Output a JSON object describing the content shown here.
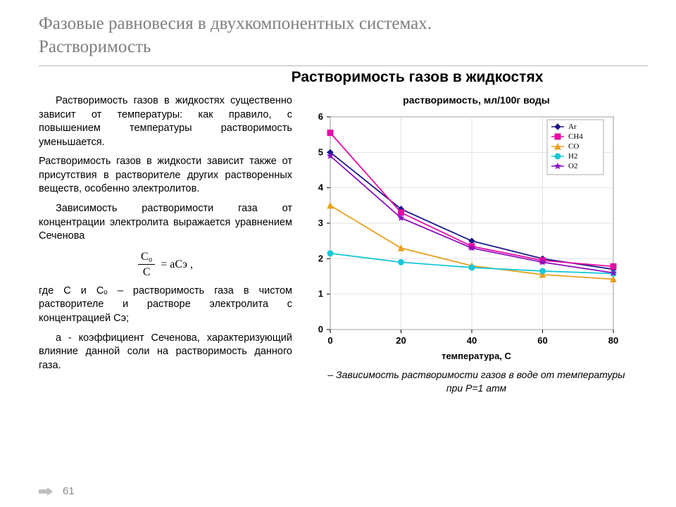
{
  "title": "Фазовые равновесия в двухкомпонентных системах.\nРастворимость",
  "subtitle": "Растворимость газов в жидкостях",
  "page_number": "61",
  "text": {
    "p1": "Растворимость газов в жидкостях существенно зависит от температуры: как правило, с повышением температуры растворимость уменьшается.",
    "p2": "Растворимость газов в жидкости зависит также от присутствия в растворителе других растворенных веществ, особенно электролитов.",
    "p3": "Зависимость растворимости газа от концентрации электролита выражается уравнением Сеченова",
    "formula": {
      "num": "C₀",
      "den": "C",
      "rhs": "= aCэ ,"
    },
    "p4": "где C и Cₒ – растворимость газа в чистом растворителе и растворе электролита с концентрацией Cэ;",
    "p5": "a - коэффициент Сеченова, характеризующий влияние данной соли на растворимость данного газа."
  },
  "chart": {
    "type": "line",
    "title": "растворимость, мл/100г воды",
    "xlabel": "температура, С",
    "xlim": [
      0,
      80
    ],
    "ylim": [
      0,
      6
    ],
    "xticks": [
      0,
      20,
      40,
      60,
      80
    ],
    "yticks": [
      0,
      1,
      2,
      3,
      4,
      5,
      6
    ],
    "grid_color": "#d8d8d8",
    "axis_color": "#000000",
    "background": "#ffffff",
    "tick_font_size": 13,
    "series": [
      {
        "name": "Ar",
        "color": "#1a1a8a",
        "marker": "diamond",
        "x": [
          0,
          20,
          40,
          60,
          80
        ],
        "y": [
          5.0,
          3.4,
          2.5,
          2.0,
          1.7
        ]
      },
      {
        "name": "CH4",
        "color": "#e60da4",
        "marker": "square",
        "x": [
          0,
          20,
          40,
          60,
          80
        ],
        "y": [
          5.55,
          3.3,
          2.35,
          1.95,
          1.78
        ]
      },
      {
        "name": "CO",
        "color": "#e8a020",
        "marker": "triangle",
        "x": [
          0,
          20,
          40,
          60,
          80
        ],
        "y": [
          3.5,
          2.3,
          1.8,
          1.55,
          1.42
        ]
      },
      {
        "name": "H2",
        "color": "#18c8d8",
        "marker": "circle",
        "x": [
          0,
          20,
          40,
          60,
          80
        ],
        "y": [
          2.15,
          1.9,
          1.75,
          1.65,
          1.58
        ]
      },
      {
        "name": "O2",
        "color": "#8a10c0",
        "marker": "star",
        "x": [
          0,
          20,
          40,
          60,
          80
        ],
        "y": [
          4.9,
          3.15,
          2.3,
          1.9,
          1.6
        ]
      }
    ],
    "legend_position": "top-right",
    "legend_box_color": "#999999"
  },
  "caption": "– Зависимость растворимости газов в воде от температуры при P=1 атм"
}
